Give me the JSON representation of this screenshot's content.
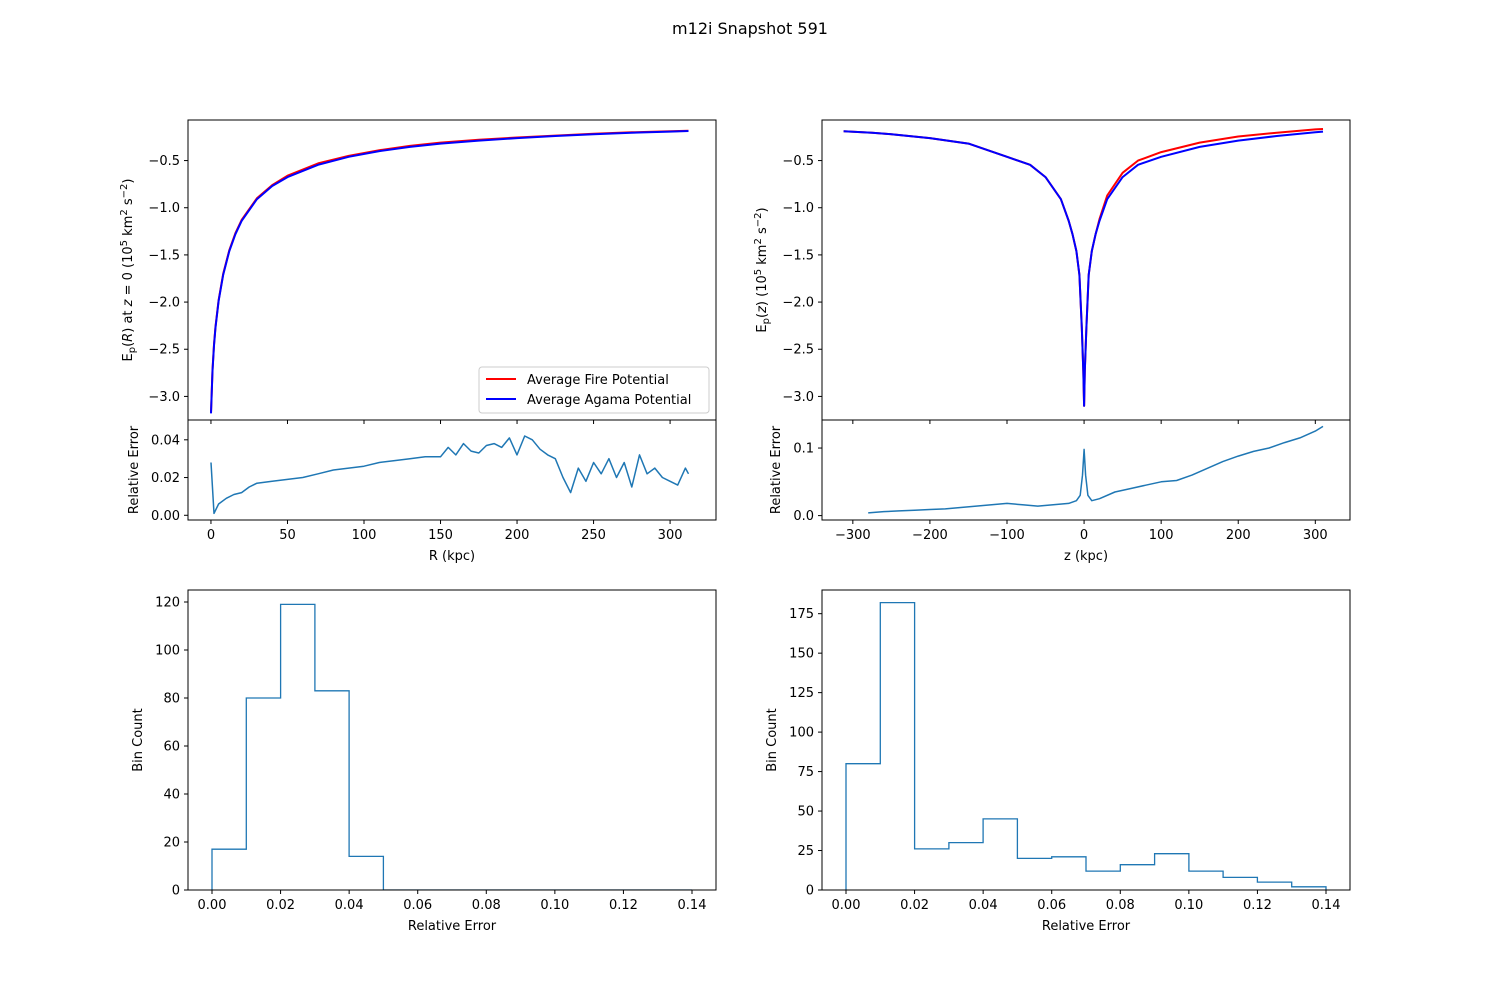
{
  "figure": {
    "title": "m12i Snapshot 591"
  },
  "colors": {
    "fire": "#ff0000",
    "agama": "#0000ff",
    "error": "#1f77b4"
  },
  "chart_data": [
    {
      "id": "potential_R",
      "type": "line",
      "ylabel_plain": "E_p(R) at z = 0 (10^5 km^2 s^-2)",
      "xlim": [
        -15,
        330
      ],
      "ylim": [
        -3.25,
        -0.07
      ],
      "yticks": [
        -3.0,
        -2.5,
        -2.0,
        -1.5,
        -1.0,
        -0.5
      ],
      "ytick_labels": [
        "−3.0",
        "−2.5",
        "−2.0",
        "−1.5",
        "−1.0",
        "−0.5"
      ],
      "xticks": [
        0,
        50,
        100,
        150,
        200,
        250,
        300
      ],
      "grid": false,
      "legend": {
        "position": "lower-right",
        "entries": [
          "Average Fire Potential",
          "Average Agama Potential"
        ]
      },
      "series": [
        {
          "name": "Average Fire Potential",
          "color": "#ff0000",
          "x": [
            0,
            1,
            2,
            3,
            5,
            8,
            12,
            16,
            20,
            30,
            40,
            50,
            70,
            90,
            110,
            130,
            150,
            175,
            200,
            225,
            250,
            275,
            300,
            312
          ],
          "y": [
            -3.17,
            -2.72,
            -2.45,
            -2.26,
            -1.98,
            -1.7,
            -1.45,
            -1.27,
            -1.13,
            -0.9,
            -0.76,
            -0.66,
            -0.53,
            -0.45,
            -0.39,
            -0.345,
            -0.31,
            -0.28,
            -0.255,
            -0.235,
            -0.215,
            -0.2,
            -0.19,
            -0.185
          ]
        },
        {
          "name": "Average Agama Potential",
          "color": "#0000ff",
          "x": [
            0,
            1,
            2,
            3,
            5,
            8,
            12,
            16,
            20,
            30,
            40,
            50,
            70,
            90,
            110,
            130,
            150,
            175,
            200,
            225,
            250,
            275,
            300,
            312
          ],
          "y": [
            -3.18,
            -2.73,
            -2.46,
            -2.27,
            -1.99,
            -1.71,
            -1.46,
            -1.28,
            -1.14,
            -0.91,
            -0.77,
            -0.675,
            -0.545,
            -0.46,
            -0.4,
            -0.355,
            -0.32,
            -0.288,
            -0.262,
            -0.24,
            -0.22,
            -0.205,
            -0.193,
            -0.187
          ]
        }
      ]
    },
    {
      "id": "error_R",
      "type": "line",
      "xlabel": "R (kpc)",
      "ylabel": "Relative Error",
      "xlim": [
        -15,
        330
      ],
      "ylim": [
        -0.0025,
        0.0505
      ],
      "yticks": [
        0.0,
        0.02,
        0.04
      ],
      "ytick_labels": [
        "0.00",
        "0.02",
        "0.04"
      ],
      "xticks": [
        0,
        50,
        100,
        150,
        200,
        250,
        300
      ],
      "grid": false,
      "series": [
        {
          "name": "",
          "color": "#1f77b4",
          "x": [
            0,
            2,
            5,
            10,
            15,
            20,
            25,
            30,
            40,
            50,
            60,
            70,
            80,
            90,
            100,
            110,
            120,
            130,
            140,
            150,
            155,
            160,
            165,
            170,
            175,
            180,
            185,
            190,
            195,
            200,
            205,
            210,
            215,
            220,
            225,
            230,
            235,
            240,
            245,
            250,
            255,
            260,
            265,
            270,
            275,
            280,
            285,
            290,
            295,
            300,
            305,
            310,
            312
          ],
          "y": [
            0.028,
            0.001,
            0.006,
            0.009,
            0.011,
            0.012,
            0.015,
            0.017,
            0.018,
            0.019,
            0.02,
            0.022,
            0.024,
            0.025,
            0.026,
            0.028,
            0.029,
            0.03,
            0.031,
            0.031,
            0.036,
            0.032,
            0.038,
            0.034,
            0.033,
            0.037,
            0.038,
            0.036,
            0.041,
            0.032,
            0.042,
            0.04,
            0.035,
            0.032,
            0.03,
            0.02,
            0.012,
            0.025,
            0.018,
            0.028,
            0.022,
            0.03,
            0.02,
            0.028,
            0.015,
            0.032,
            0.022,
            0.025,
            0.02,
            0.018,
            0.016,
            0.025,
            0.022
          ]
        }
      ]
    },
    {
      "id": "potential_z",
      "type": "line",
      "ylabel_plain": "E_p(z) (10^5 km^2 s^-2)",
      "xlim": [
        -340,
        345
      ],
      "ylim": [
        -3.25,
        -0.07
      ],
      "yticks": [
        -3.0,
        -2.5,
        -2.0,
        -1.5,
        -1.0,
        -0.5
      ],
      "ytick_labels": [
        "−3.0",
        "−2.5",
        "−2.0",
        "−1.5",
        "−1.0",
        "−0.5"
      ],
      "xticks": [
        -300,
        -200,
        -100,
        0,
        100,
        200,
        300
      ],
      "grid": false,
      "series": [
        {
          "name": "Average Fire Potential",
          "color": "#ff0000",
          "x": [
            -312,
            -275,
            -250,
            -200,
            -150,
            -100,
            -70,
            -50,
            -30,
            -20,
            -15,
            -10,
            -6,
            -3,
            -1,
            0,
            1,
            3,
            6,
            10,
            15,
            20,
            30,
            50,
            70,
            100,
            150,
            200,
            250,
            300,
            310
          ],
          "y": [
            -0.19,
            -0.205,
            -0.22,
            -0.262,
            -0.32,
            -0.46,
            -0.545,
            -0.675,
            -0.91,
            -1.14,
            -1.28,
            -1.46,
            -1.71,
            -2.27,
            -2.73,
            -3.1,
            -2.73,
            -2.27,
            -1.71,
            -1.46,
            -1.28,
            -1.12,
            -0.87,
            -0.63,
            -0.5,
            -0.41,
            -0.31,
            -0.245,
            -0.205,
            -0.17,
            -0.165
          ]
        },
        {
          "name": "Average Agama Potential",
          "color": "#0000ff",
          "x": [
            -312,
            -275,
            -250,
            -200,
            -150,
            -100,
            -70,
            -50,
            -30,
            -20,
            -15,
            -10,
            -6,
            -3,
            -1,
            0,
            1,
            3,
            6,
            10,
            15,
            20,
            30,
            50,
            70,
            100,
            150,
            200,
            250,
            300,
            310
          ],
          "y": [
            -0.19,
            -0.205,
            -0.22,
            -0.262,
            -0.32,
            -0.46,
            -0.545,
            -0.675,
            -0.91,
            -1.14,
            -1.28,
            -1.46,
            -1.71,
            -2.27,
            -2.73,
            -3.1,
            -2.73,
            -2.27,
            -1.71,
            -1.46,
            -1.28,
            -1.14,
            -0.91,
            -0.675,
            -0.545,
            -0.46,
            -0.355,
            -0.288,
            -0.24,
            -0.2,
            -0.193
          ]
        }
      ]
    },
    {
      "id": "error_z",
      "type": "line",
      "xlabel": "z (kpc)",
      "ylabel": "Relative Error",
      "xlim": [
        -340,
        345
      ],
      "ylim": [
        -0.0065,
        0.1415
      ],
      "yticks": [
        0.0,
        0.1
      ],
      "ytick_labels": [
        "0.0",
        "0.1"
      ],
      "xticks": [
        -300,
        -200,
        -100,
        0,
        100,
        200,
        300
      ],
      "grid": false,
      "series": [
        {
          "name": "",
          "color": "#1f77b4",
          "x": [
            -280,
            -260,
            -240,
            -220,
            -200,
            -180,
            -160,
            -140,
            -120,
            -100,
            -80,
            -60,
            -40,
            -20,
            -10,
            -5,
            -2,
            0,
            2,
            5,
            10,
            20,
            40,
            60,
            80,
            100,
            120,
            140,
            160,
            180,
            200,
            220,
            240,
            260,
            280,
            300,
            310
          ],
          "y": [
            0.004,
            0.006,
            0.007,
            0.008,
            0.009,
            0.01,
            0.012,
            0.014,
            0.016,
            0.018,
            0.016,
            0.014,
            0.016,
            0.018,
            0.022,
            0.03,
            0.06,
            0.098,
            0.06,
            0.03,
            0.022,
            0.025,
            0.035,
            0.04,
            0.045,
            0.05,
            0.052,
            0.06,
            0.07,
            0.08,
            0.088,
            0.095,
            0.1,
            0.108,
            0.115,
            0.125,
            0.132
          ]
        }
      ]
    },
    {
      "id": "hist_R",
      "type": "bar",
      "xlabel": "Relative Error",
      "ylabel": "Bin Count",
      "xlim": [
        -0.007,
        0.147
      ],
      "ylim": [
        0,
        125
      ],
      "yticks": [
        0,
        20,
        40,
        60,
        80,
        100,
        120
      ],
      "xticks": [
        0.0,
        0.02,
        0.04,
        0.06,
        0.08,
        0.1,
        0.12,
        0.14
      ],
      "xtick_labels": [
        "0.00",
        "0.02",
        "0.04",
        "0.06",
        "0.08",
        "0.10",
        "0.12",
        "0.14"
      ],
      "bin_edges": [
        0.0,
        0.01,
        0.02,
        0.03,
        0.04,
        0.05,
        0.06,
        0.07,
        0.08,
        0.09,
        0.1,
        0.11,
        0.12,
        0.13,
        0.14
      ],
      "values": [
        17,
        80,
        119,
        83,
        14,
        0,
        0,
        0,
        0,
        0,
        0,
        0,
        0,
        0
      ],
      "grid": false
    },
    {
      "id": "hist_z",
      "type": "bar",
      "xlabel": "Relative Error",
      "ylabel": "Bin Count",
      "xlim": [
        -0.007,
        0.147
      ],
      "ylim": [
        0,
        190
      ],
      "yticks": [
        0,
        25,
        50,
        75,
        100,
        125,
        150,
        175
      ],
      "xticks": [
        0.0,
        0.02,
        0.04,
        0.06,
        0.08,
        0.1,
        0.12,
        0.14
      ],
      "xtick_labels": [
        "0.00",
        "0.02",
        "0.04",
        "0.06",
        "0.08",
        "0.10",
        "0.12",
        "0.14"
      ],
      "bin_edges": [
        0.0,
        0.01,
        0.02,
        0.03,
        0.04,
        0.05,
        0.06,
        0.07,
        0.08,
        0.09,
        0.1,
        0.11,
        0.12,
        0.13,
        0.14
      ],
      "values": [
        80,
        182,
        26,
        30,
        45,
        20,
        21,
        12,
        16,
        23,
        12,
        8,
        5,
        2
      ],
      "grid": false
    }
  ]
}
